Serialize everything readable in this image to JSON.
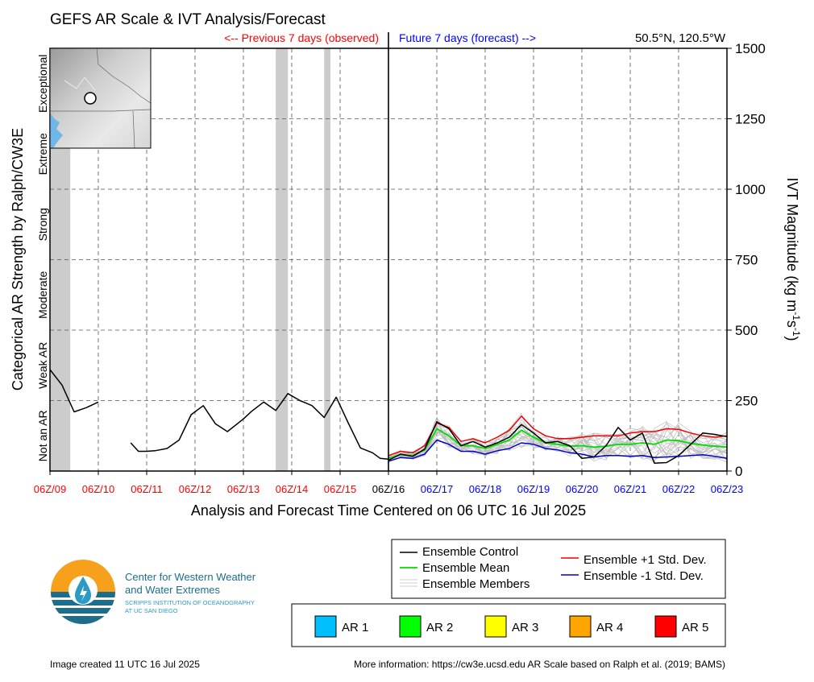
{
  "header": {
    "title": "GEFS AR Scale & IVT Analysis/Forecast",
    "previous_label": "<-- Previous 7 days (observed)",
    "future_label": "Future 7 days (forecast) -->",
    "location": "50.5°N, 120.5°W"
  },
  "chart_data": {
    "type": "line",
    "title": "GEFS AR Scale & IVT Analysis/Forecast",
    "xlabel": "Analysis and Forecast Time Centered on 06 UTC 16 Jul 2025",
    "ylabel_left": "Categorical AR Strength by Ralph/CW3E",
    "ylabel_right_parts": [
      "IVT Magnitude (kg m",
      "-1",
      "s",
      "-1",
      ")"
    ],
    "xlim": [
      0,
      14
    ],
    "ylim": [
      0,
      1500
    ],
    "x_ticks": [
      {
        "value": 0,
        "label": "06Z/09",
        "period": "past"
      },
      {
        "value": 1,
        "label": "06Z/10",
        "period": "past"
      },
      {
        "value": 2,
        "label": "06Z/11",
        "period": "past"
      },
      {
        "value": 3,
        "label": "06Z/12",
        "period": "past"
      },
      {
        "value": 4,
        "label": "06Z/13",
        "period": "past"
      },
      {
        "value": 5,
        "label": "06Z/14",
        "period": "past"
      },
      {
        "value": 6,
        "label": "06Z/15",
        "period": "past"
      },
      {
        "value": 7,
        "label": "06Z/16",
        "period": "now"
      },
      {
        "value": 8,
        "label": "06Z/17",
        "period": "future"
      },
      {
        "value": 9,
        "label": "06Z/18",
        "period": "future"
      },
      {
        "value": 10,
        "label": "06Z/19",
        "period": "future"
      },
      {
        "value": 11,
        "label": "06Z/20",
        "period": "future"
      },
      {
        "value": 12,
        "label": "06Z/21",
        "period": "future"
      },
      {
        "value": 13,
        "label": "06Z/22",
        "period": "future"
      },
      {
        "value": 14,
        "label": "06Z/23",
        "period": "future"
      }
    ],
    "y_ticks": [
      0,
      250,
      500,
      750,
      1000,
      1250,
      1500
    ],
    "categories": [
      "Not an AR",
      "Weak AR",
      "Moderate",
      "Strong",
      "Extreme",
      "Exceptional"
    ],
    "ar_periods": [
      [
        0,
        0.42
      ],
      [
        4.67,
        4.92
      ],
      [
        5.67,
        5.8
      ]
    ],
    "observed": {
      "name": "Ensemble Control",
      "segments": [
        [
          [
            0,
            360
          ],
          [
            0.25,
            305
          ],
          [
            0.5,
            210
          ],
          [
            0.75,
            225
          ],
          [
            1.0,
            245
          ]
        ],
        [
          [
            1.67,
            100
          ],
          [
            1.83,
            70
          ],
          [
            2.0,
            70
          ],
          [
            2.17,
            72
          ],
          [
            2.42,
            80
          ],
          [
            2.67,
            110
          ],
          [
            2.92,
            200
          ],
          [
            3.17,
            232
          ],
          [
            3.42,
            168
          ],
          [
            3.67,
            140
          ],
          [
            4.0,
            185
          ],
          [
            4.17,
            212
          ],
          [
            4.42,
            245
          ],
          [
            4.67,
            215
          ],
          [
            4.92,
            275
          ],
          [
            5.17,
            250
          ],
          [
            5.42,
            232
          ],
          [
            5.67,
            190
          ],
          [
            5.92,
            262
          ],
          [
            6.17,
            170
          ],
          [
            6.42,
            82
          ],
          [
            6.67,
            65
          ],
          [
            6.83,
            45
          ],
          [
            7.0,
            42
          ]
        ]
      ]
    },
    "forecast": {
      "x": [
        7.0,
        7.25,
        7.5,
        7.75,
        8.0,
        8.25,
        8.5,
        8.75,
        9.0,
        9.25,
        9.5,
        9.75,
        10.0,
        10.25,
        10.5,
        10.75,
        11.0,
        11.25,
        11.5,
        11.75,
        12.0,
        12.25,
        12.5,
        12.75,
        13.0,
        13.25,
        13.5,
        13.75,
        14.0
      ],
      "series": [
        {
          "name": "Ensemble Control",
          "color": "#000000",
          "values": [
            38,
            60,
            52,
            78,
            175,
            150,
            90,
            105,
            85,
            100,
            120,
            165,
            135,
            100,
            105,
            90,
            45,
            50,
            90,
            155,
            110,
            135,
            28,
            30,
            55,
            95,
            135,
            130,
            122
          ]
        },
        {
          "name": "Ensemble Mean",
          "color": "#00dd00",
          "values": [
            45,
            58,
            55,
            75,
            150,
            125,
            90,
            90,
            80,
            95,
            110,
            145,
            120,
            100,
            95,
            88,
            90,
            85,
            88,
            95,
            95,
            100,
            95,
            110,
            108,
            98,
            92,
            88,
            85
          ]
        },
        {
          "name": "Ensemble +1 Std. Dev.",
          "color": "#ee0000",
          "values": [
            55,
            70,
            65,
            90,
            170,
            155,
            105,
            115,
            100,
            120,
            145,
            195,
            150,
            125,
            115,
            115,
            120,
            125,
            125,
            125,
            135,
            140,
            140,
            150,
            148,
            135,
            125,
            120,
            125
          ]
        },
        {
          "name": "Ensemble -1 Std. Dev.",
          "color": "#0000cc",
          "values": [
            35,
            48,
            45,
            60,
            110,
            95,
            70,
            70,
            60,
            72,
            80,
            100,
            95,
            80,
            75,
            65,
            60,
            50,
            55,
            55,
            52,
            55,
            48,
            50,
            52,
            55,
            58,
            52,
            45
          ]
        }
      ]
    }
  },
  "legend": {
    "control": "Ensemble Control",
    "mean": "Ensemble Mean",
    "members": "Ensemble Members",
    "plus_sd": "Ensemble +1 Std. Dev.",
    "minus_sd": "Ensemble -1 Std. Dev."
  },
  "ar_scale": [
    {
      "label": "AR 1",
      "color": "#00bfff"
    },
    {
      "label": "AR 2",
      "color": "#00ff00"
    },
    {
      "label": "AR 3",
      "color": "#ffff00"
    },
    {
      "label": "AR 4",
      "color": "#ffa500"
    },
    {
      "label": "AR 5",
      "color": "#ff0000"
    }
  ],
  "logo": {
    "line1": "Center for Western Weather",
    "line2": "and Water Extremes",
    "line3": "SCRIPPS INSTITUTION OF OCEANOGRAPHY",
    "line4": "AT UC SAN DIEGO"
  },
  "footer": {
    "created": "Image created 11 UTC 16 Jul 2025",
    "info": "More information: https://cw3e.ucsd.edu AR Scale based on Ralph et al. (2019; BAMS)"
  },
  "colors": {
    "past": "#ff0000",
    "future": "#0000ff",
    "now": "#000000",
    "ar_shade": "#cccccc",
    "member": "#bdbdbd"
  }
}
